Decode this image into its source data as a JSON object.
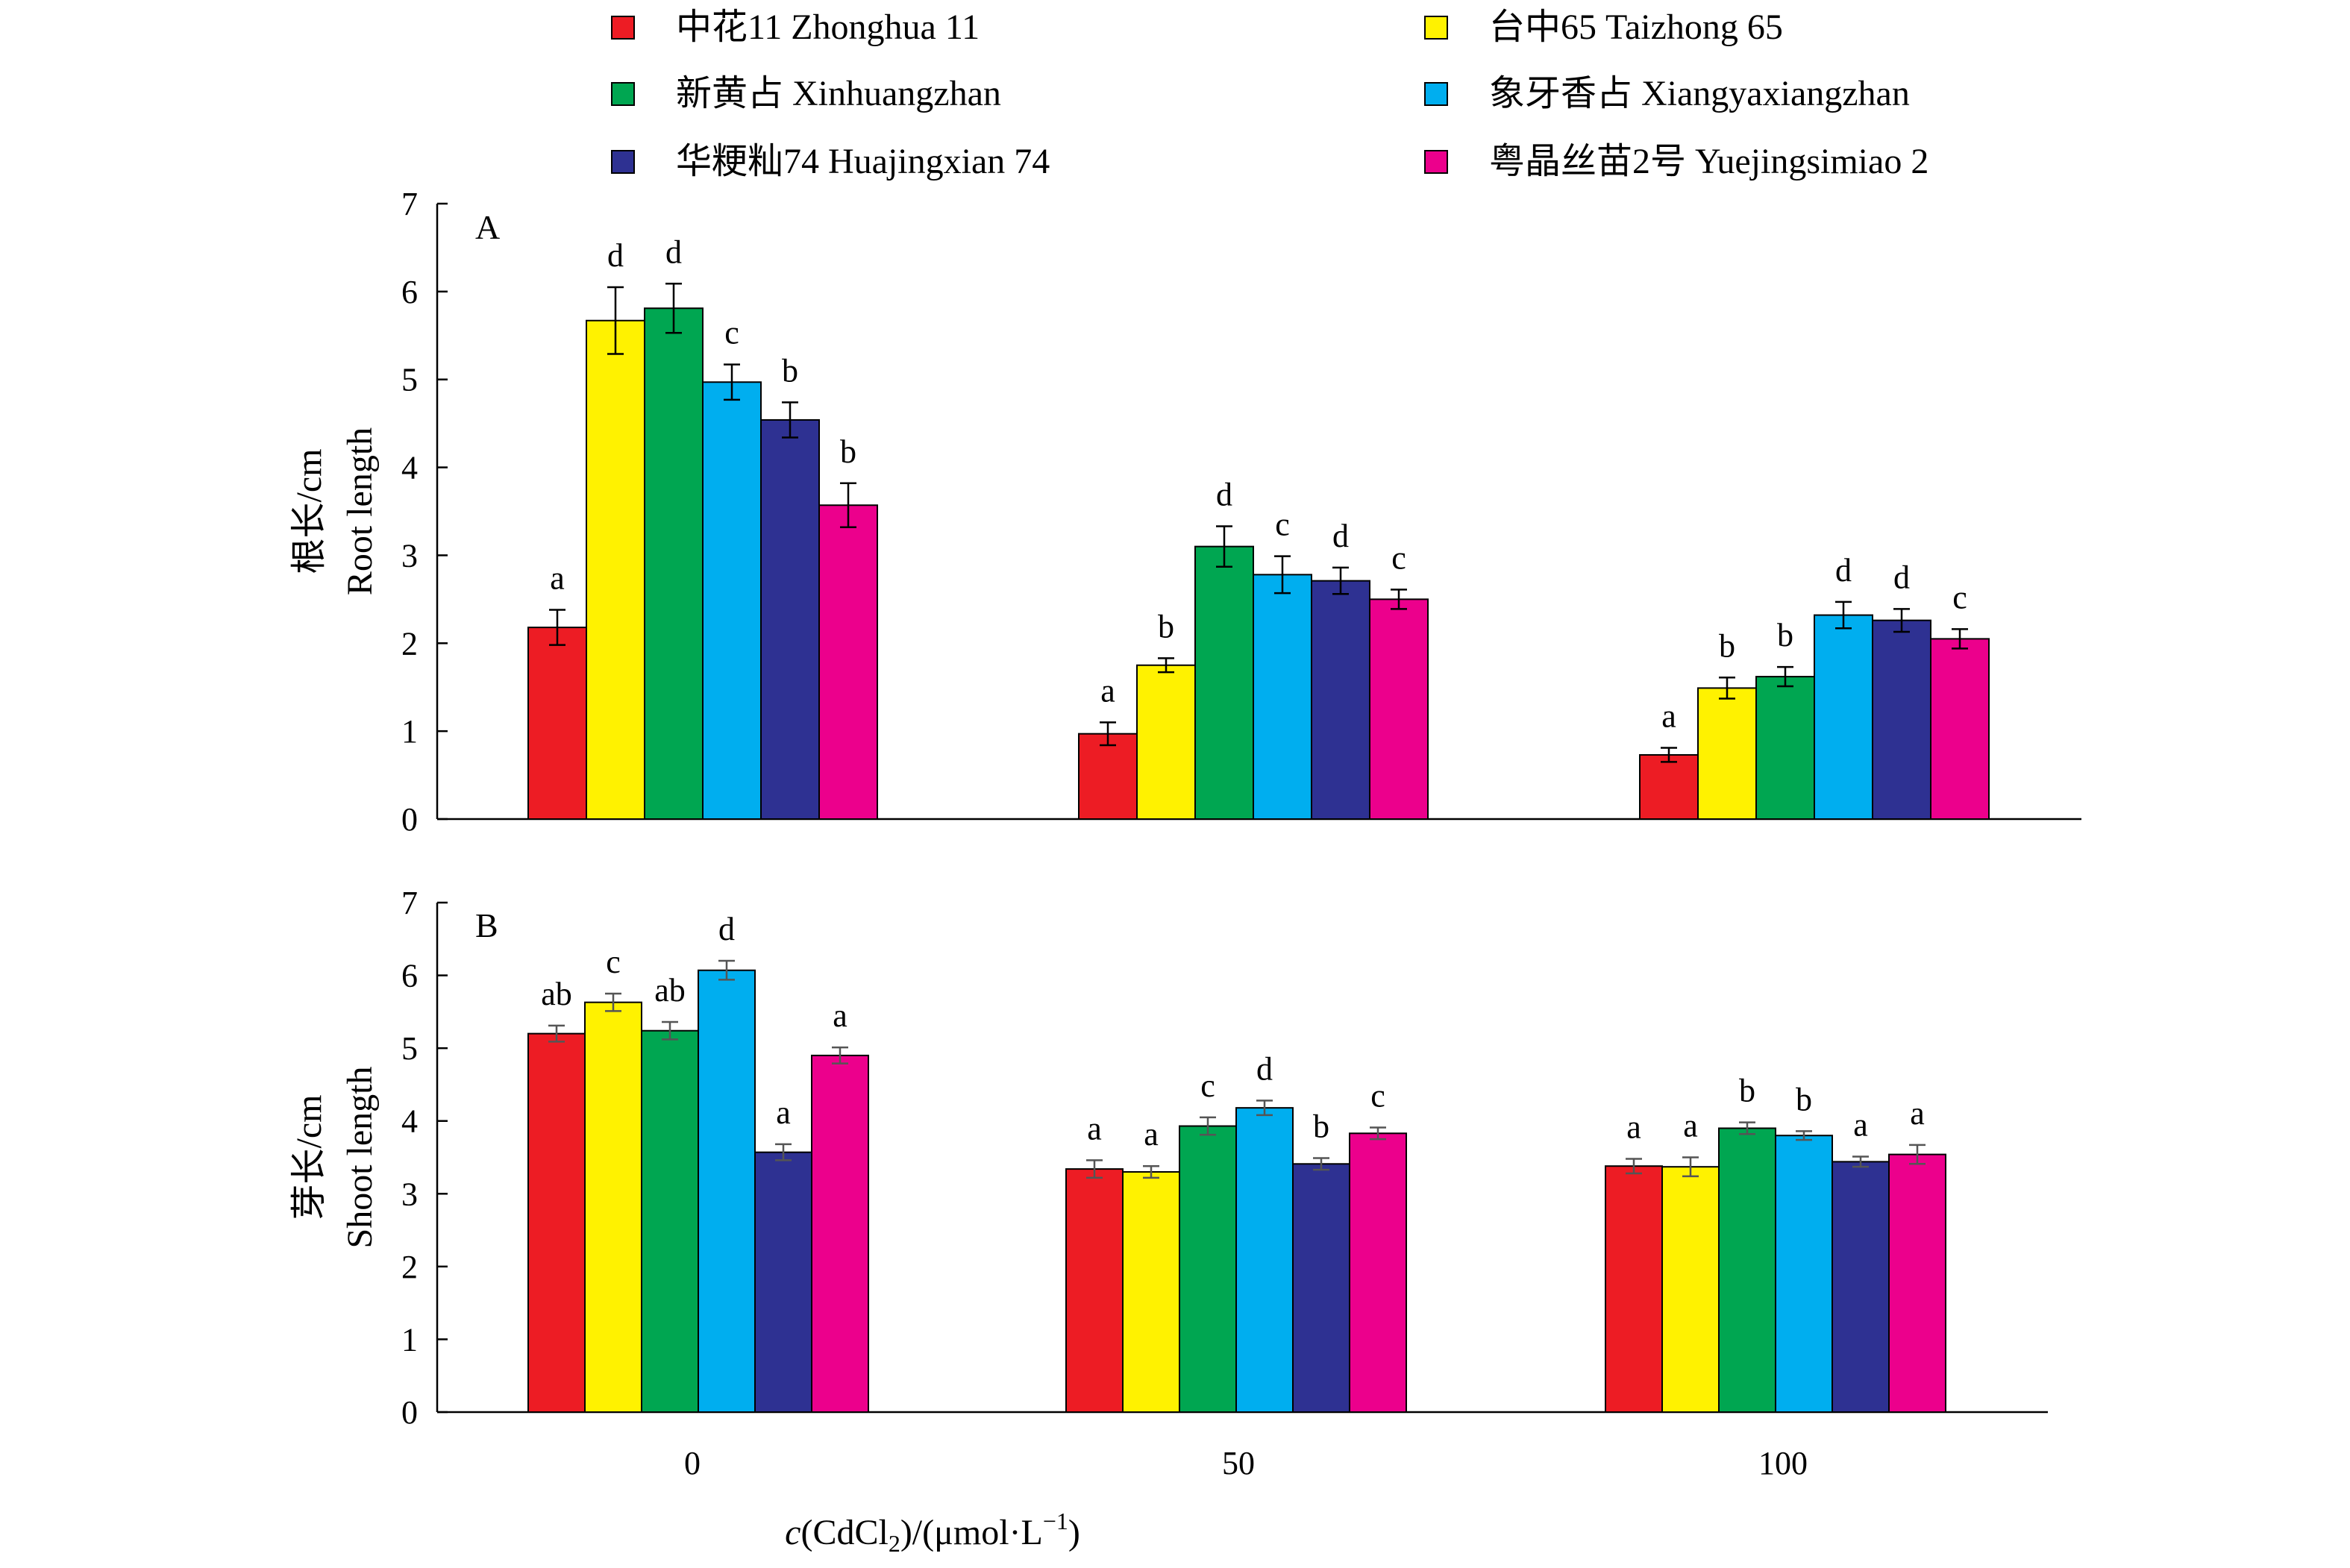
{
  "chart_data": {
    "type": "bar",
    "categories": [
      "0",
      "50",
      "100"
    ],
    "xlabel_parts": [
      "c",
      "(CdCl",
      "2",
      ")/(μmol·L",
      "−1",
      ")"
    ],
    "legend": [
      {
        "name": "中花11 Zhonghua 11",
        "color": "#ed1c24"
      },
      {
        "name": "台中65 Taizhong 65",
        "color": "#fff200"
      },
      {
        "name": "新黄占 Xinhuangzhan",
        "color": "#00a651"
      },
      {
        "name": "象牙香占 Xiangyaxiangzhan",
        "color": "#00aeef"
      },
      {
        "name": "华粳籼74 Huajingxian 74",
        "color": "#2e3192"
      },
      {
        "name": "粤晶丝苗2号 Yuejingsimiao 2",
        "color": "#ec008c"
      }
    ],
    "panels": [
      {
        "panel_label": "A",
        "ylabel_cn": "根长/cm",
        "ylabel_en": "Root length",
        "ylim": [
          0,
          7
        ],
        "yticks": [
          0,
          1,
          2,
          3,
          4,
          5,
          6,
          7
        ],
        "bar_order": [
          "中花11 Zhonghua 11",
          "台中65 Taizhong 65",
          "新黄占 Xinhuangzhan",
          "象牙香占 Xiangyaxiangzhan",
          "华粳籼74 Huajingxian 74",
          "粤晶丝苗2号 Yuejingsimiao 2"
        ],
        "groups": [
          {
            "category": "0",
            "values": [
              2.18,
              5.67,
              5.81,
              4.97,
              4.54,
              3.57
            ],
            "errors": [
              0.2,
              0.38,
              0.28,
              0.2,
              0.2,
              0.25
            ],
            "letters": [
              "a",
              "d",
              "d",
              "c",
              "b",
              "b"
            ]
          },
          {
            "category": "50",
            "values": [
              0.97,
              1.75,
              3.1,
              2.78,
              2.71,
              2.5
            ],
            "errors": [
              0.13,
              0.08,
              0.23,
              0.21,
              0.15,
              0.11
            ],
            "letters": [
              "a",
              "b",
              "d",
              "c",
              "d",
              "c"
            ]
          },
          {
            "category": "100",
            "values": [
              0.73,
              1.49,
              1.62,
              2.32,
              2.26,
              2.05
            ],
            "errors": [
              0.08,
              0.12,
              0.11,
              0.15,
              0.13,
              0.11
            ],
            "letters": [
              "a",
              "b",
              "b",
              "d",
              "d",
              "c"
            ]
          }
        ]
      },
      {
        "panel_label": "B",
        "ylabel_cn": "芽长/cm",
        "ylabel_en": "Shoot length",
        "ylim": [
          0,
          7
        ],
        "yticks": [
          0,
          1,
          2,
          3,
          4,
          5,
          6,
          7
        ],
        "bar_order": [
          "中花11 Zhonghua 11",
          "台中65 Taizhong 65",
          "新黄占 Xinhuangzhan",
          "象牙香占 Xiangyaxiangzhan",
          "华粳籼74 Huajingxian 74",
          "粤晶丝苗2号 Yuejingsimiao 2"
        ],
        "groups": [
          {
            "category": "0",
            "values": [
              5.2,
              5.63,
              5.24,
              6.07,
              3.57,
              4.9
            ],
            "errors": [
              0.11,
              0.12,
              0.12,
              0.13,
              0.11,
              0.11
            ],
            "letters": [
              "ab",
              "c",
              "ab",
              "d",
              "a",
              "a"
            ]
          },
          {
            "category": "50",
            "values": [
              3.34,
              3.3,
              3.93,
              4.18,
              3.41,
              3.83
            ],
            "errors": [
              0.12,
              0.08,
              0.12,
              0.1,
              0.08,
              0.08
            ],
            "letters": [
              "a",
              "a",
              "c",
              "d",
              "b",
              "c"
            ]
          },
          {
            "category": "100",
            "values": [
              3.38,
              3.37,
              3.9,
              3.8,
              3.44,
              3.54
            ],
            "errors": [
              0.1,
              0.13,
              0.08,
              0.06,
              0.07,
              0.13
            ],
            "letters": [
              "a",
              "a",
              "b",
              "b",
              "a",
              "a"
            ]
          }
        ]
      }
    ]
  }
}
